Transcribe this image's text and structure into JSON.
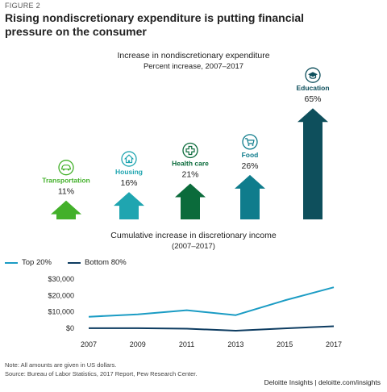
{
  "figure_label": "FIGURE 2",
  "title": "Rising nondiscretionary expenditure is putting financial pressure on the consumer",
  "footer": "Deloitte Insights | deloitte.com/insights",
  "notes": {
    "note": "Note: All amounts are given in US dollars.",
    "source": "Source: Bureau of Labor Statistics, 2017 Report, Pew Research Center."
  },
  "chart_data": [
    {
      "type": "bar",
      "title": "Increase in nondiscretionary expenditure",
      "subtitle": "Percent increase, 2007–2017",
      "categories": [
        "Transportation",
        "Housing",
        "Health care",
        "Food",
        "Education"
      ],
      "values": [
        11,
        16,
        21,
        26,
        65
      ],
      "value_labels": [
        "11%",
        "16%",
        "21%",
        "26%",
        "65%"
      ],
      "icons": [
        "car-icon",
        "house-icon",
        "medical-cross-icon",
        "cart-icon",
        "graduation-cap-icon"
      ],
      "colors": [
        "#43b02a",
        "#1fa5b0",
        "#0b6b3b",
        "#0f7c8c",
        "#0e4f5c"
      ],
      "ylim": [
        0,
        65
      ]
    },
    {
      "type": "line",
      "title": "Cumulative increase in discretionary income",
      "subtitle": "(2007–2017)",
      "x": [
        2007,
        2009,
        2011,
        2013,
        2015,
        2017
      ],
      "x_tick_labels": [
        "2007",
        "2009",
        "2011",
        "2013",
        "2015",
        "2017"
      ],
      "y_tick_labels": [
        "$30,000",
        "$20,000",
        "$10,000",
        "$0"
      ],
      "y_ticks": [
        30000,
        20000,
        10000,
        0
      ],
      "ylim": [
        -3000,
        32000
      ],
      "series": [
        {
          "name": "Top 20%",
          "color": "#1b9cc4",
          "values": [
            7000,
            8500,
            11000,
            8000,
            17000,
            25000
          ]
        },
        {
          "name": "Bottom 80%",
          "color": "#0d3c61",
          "values": [
            0,
            0,
            -300,
            -1500,
            -100,
            1200
          ]
        }
      ],
      "legend_position": "top-left",
      "grid": false
    }
  ]
}
